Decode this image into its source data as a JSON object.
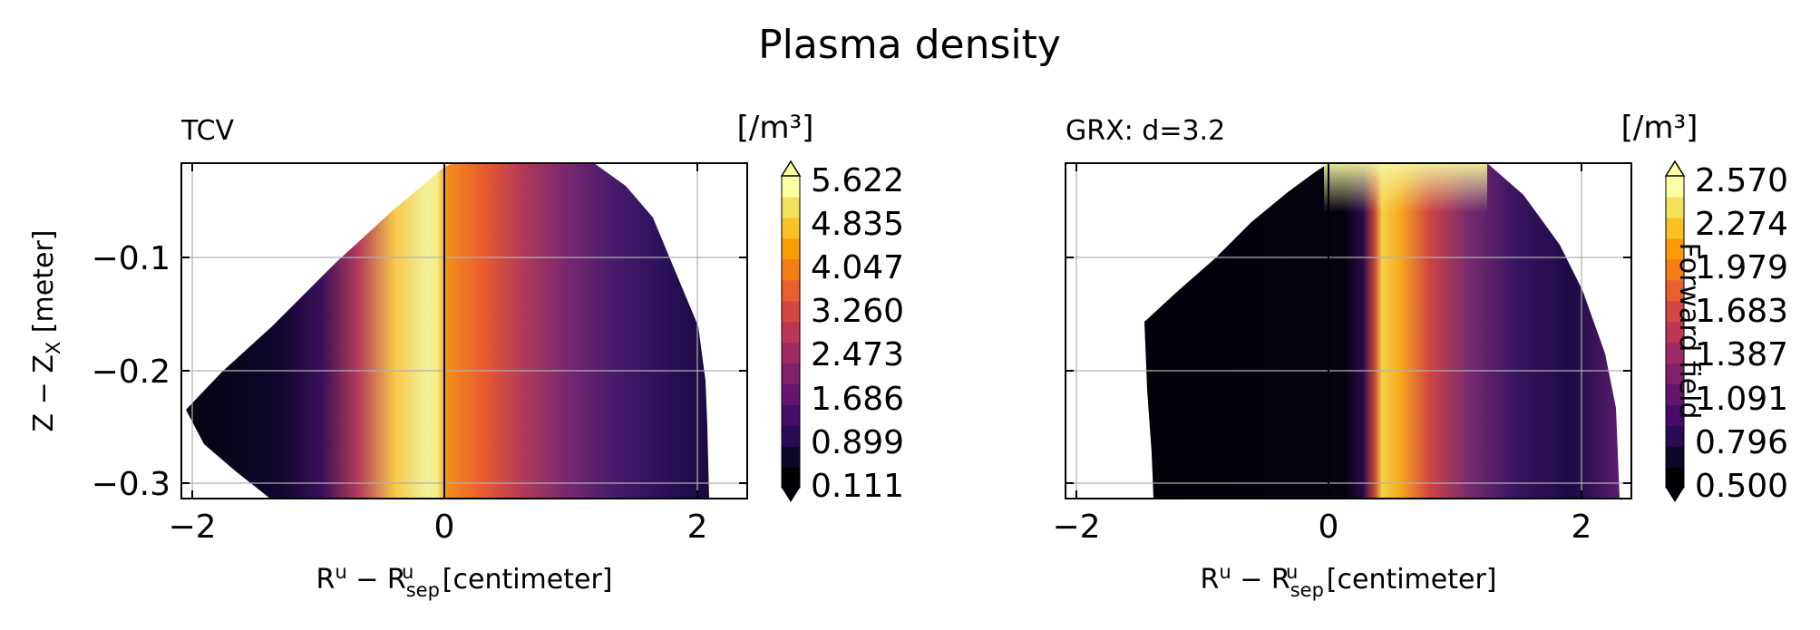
{
  "figure": {
    "suptitle": "Plasma density"
  },
  "chart_data": [
    {
      "type": "heatmap",
      "panel_title": "TCV",
      "xlabel_main": "R",
      "xlabel_sup": "u",
      "xlabel_mid": " − R",
      "xlabel_sub": "sep",
      "xlabel_sup2": "u",
      "xlabel_tail": " [centimeter]",
      "ylabel_main": "Z − Z",
      "ylabel_sub": "X",
      "ylabel_tail": " [meter]",
      "xlim": [
        -2.1,
        2.4
      ],
      "ylim": [
        -0.315,
        -0.018
      ],
      "xticks": [
        -2,
        0,
        2
      ],
      "xtick_labels": [
        "−2",
        "0",
        "2"
      ],
      "yticks": [
        -0.1,
        -0.2,
        -0.3
      ],
      "ytick_labels": [
        "−0.1",
        "−0.2",
        "−0.3"
      ],
      "grid": true,
      "separatrix_x": 0,
      "colorbar": {
        "unit_label": "[/m³]",
        "ticks": [
          "5.622",
          "4.835",
          "4.047",
          "3.260",
          "2.473",
          "1.686",
          "0.899",
          "0.111"
        ],
        "extend": "both",
        "colormap": "inferno"
      },
      "colors": {
        "dark": "#0b0624",
        "mid": "#8a2a6a",
        "bright": "#f37819",
        "peak": "#f3f28c"
      }
    },
    {
      "type": "heatmap",
      "panel_title": "GRX: d=3.2",
      "xlabel_main": "R",
      "xlabel_sup": "u",
      "xlabel_mid": " − R",
      "xlabel_sub": "sep",
      "xlabel_sup2": "u",
      "xlabel_tail": " [centimeter]",
      "xlim": [
        -2.1,
        2.4
      ],
      "ylim": [
        -0.315,
        -0.018
      ],
      "xticks": [
        -2,
        0,
        2
      ],
      "xtick_labels": [
        "−2",
        "0",
        "2"
      ],
      "yticks": [
        -0.1,
        -0.2,
        -0.3
      ],
      "grid": true,
      "separatrix_x": 0,
      "colorbar": {
        "unit_label": "[/m³]",
        "ticks": [
          "2.570",
          "2.274",
          "1.979",
          "1.683",
          "1.387",
          "1.091",
          "0.796",
          "0.500"
        ],
        "extend": "both",
        "colormap": "inferno",
        "side_label": "Forward field"
      },
      "colors": {
        "dark": "#040311",
        "mid": "#6a1d6e",
        "bright": "#f8a10e",
        "peak": "#f4f99c"
      }
    }
  ]
}
